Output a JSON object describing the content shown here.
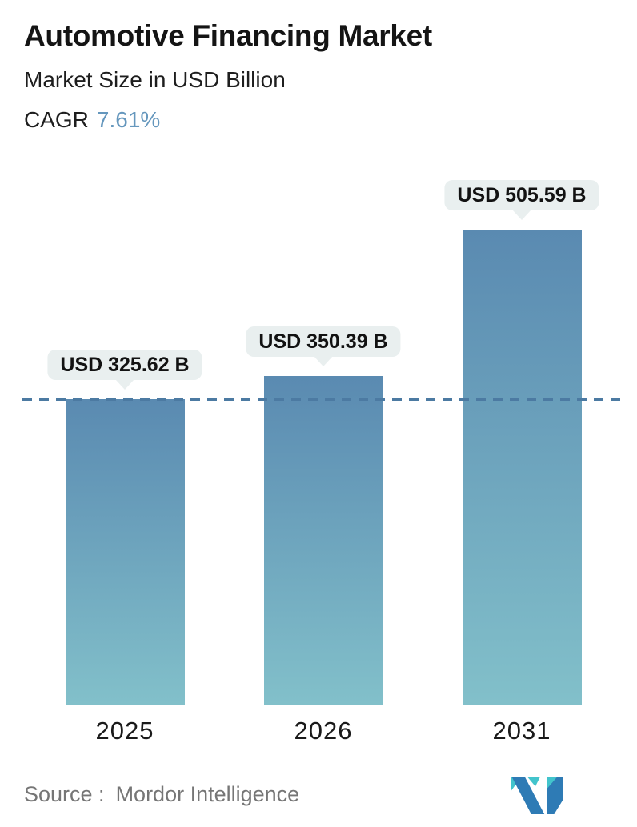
{
  "header": {
    "title": "Automotive Financing Market",
    "subtitle": "Market Size in USD Billion",
    "cagr_label": "CAGR",
    "cagr_value": "7.61%"
  },
  "chart_data": {
    "type": "bar",
    "title": "Automotive Financing Market",
    "subtitle": "Market Size in USD Billion",
    "unit": "USD Billion",
    "cagr": "7.61%",
    "categories": [
      "2025",
      "2026",
      "2031"
    ],
    "values": [
      325.62,
      350.39,
      505.59
    ],
    "value_labels": [
      "USD 325.62 B",
      "USD 350.39 B",
      "USD 505.59 B"
    ],
    "ylim": [
      0,
      560
    ],
    "grid": false,
    "legend": "none",
    "reference_line": {
      "value": 325.62,
      "style": "dashed",
      "note": "horizontal dashed line at 2025 value"
    }
  },
  "footer": {
    "source_label": "Source :",
    "source_value": "Mordor Intelligence",
    "logo": "mordor-intelligence-logo"
  },
  "colors": {
    "accent_blue": "#6597bd",
    "bar_gradient_top": "#5a8ab1",
    "bar_gradient_bottom": "#82c0ca",
    "dashed_line": "#4c7aa2",
    "pill_bg": "#e9efef",
    "title_text": "#141414",
    "source_gray": "#767676",
    "logo_teal": "#42c4cc",
    "logo_blue": "#2e7bb5"
  }
}
